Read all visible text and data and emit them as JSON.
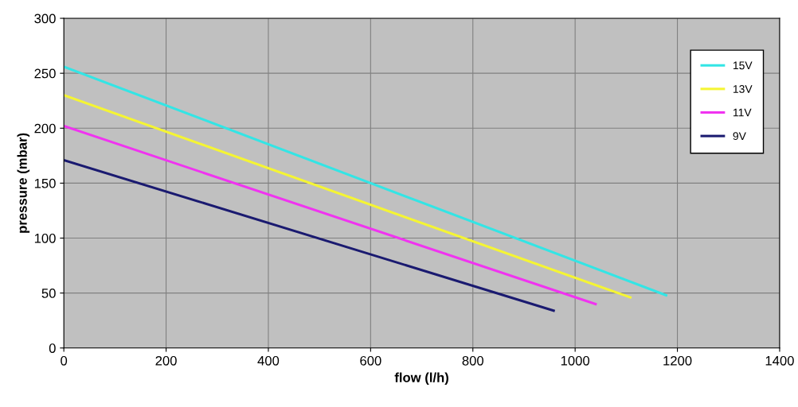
{
  "chart_data": {
    "type": "line",
    "xlabel": "flow (l/h)",
    "ylabel": "pressure (mbar)",
    "xlim": [
      0,
      1400
    ],
    "xticks": [
      0,
      200,
      400,
      600,
      800,
      1000,
      1200,
      1400
    ],
    "ylim": [
      0,
      300
    ],
    "yticks": [
      0,
      50,
      100,
      150,
      200,
      250,
      300
    ],
    "grid": true,
    "legend": "top right",
    "marker": "none",
    "line_style": "solid",
    "series": [
      {
        "name": "15V",
        "color": "#33e5e5",
        "x": [
          0,
          1178
        ],
        "values": [
          256,
          48
        ]
      },
      {
        "name": "13V",
        "color": "#f5f533",
        "x": [
          0,
          1108
        ],
        "values": [
          230,
          46
        ]
      },
      {
        "name": "11V",
        "color": "#f033f0",
        "x": [
          0,
          1040
        ],
        "values": [
          202,
          40
        ]
      },
      {
        "name": "9V",
        "color": "#1a1a70",
        "x": [
          0,
          958
        ],
        "values": [
          171,
          34
        ]
      }
    ]
  }
}
